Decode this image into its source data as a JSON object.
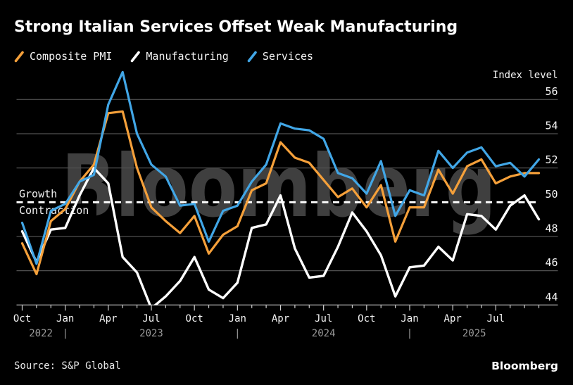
{
  "title": "Strong Italian Services Offset Weak Manufacturing",
  "source": "Source: S&P Global",
  "branding": "Bloomberg",
  "watermark": "Bloomberg",
  "threshold": {
    "value": 50,
    "above_label": "Growth",
    "below_label": "Contraction"
  },
  "colors": {
    "background": "#000000",
    "composite": "#f5a03a",
    "manufacturing": "#ffffff",
    "services": "#41a6e6",
    "gridline": "#515151",
    "axis_line": "#9e9e9e",
    "tick": "#cfcfcf",
    "watermark": "#3f3f3f",
    "axis_text": "#f5f5f5",
    "year_text": "#9a9a9a",
    "threshold_line": "#ffffff"
  },
  "chart_data": {
    "type": "line",
    "title": "Strong Italian Services Offset Weak Manufacturing",
    "y_axis_title": "Index level",
    "ylim": [
      44,
      58
    ],
    "y_ticks": [
      56,
      54,
      52,
      50,
      48,
      46,
      44
    ],
    "grid": true,
    "legend_position": "top",
    "threshold_value": 50,
    "x_tick_labels": [
      "Oct",
      "Jan",
      "Apr",
      "Jul",
      "Oct",
      "Jan",
      "Apr",
      "Jul",
      "Oct",
      "Jan",
      "Apr",
      "Jul"
    ],
    "x_year_labels": [
      "2022",
      "2023",
      "2024",
      "2025"
    ],
    "year_separator": "|",
    "x": [
      "Sep 2022",
      "Oct 2022",
      "Nov 2022",
      "Dec 2022",
      "Jan 2023",
      "Feb 2023",
      "Mar 2023",
      "Apr 2023",
      "May 2023",
      "Jun 2023",
      "Jul 2023",
      "Aug 2023",
      "Sep 2023",
      "Oct 2023",
      "Nov 2023",
      "Dec 2023",
      "Jan 2024",
      "Feb 2024",
      "Mar 2024",
      "Apr 2024",
      "May 2024",
      "Jun 2024",
      "Jul 2024",
      "Aug 2024",
      "Sep 2024",
      "Oct 2024",
      "Nov 2024",
      "Dec 2024",
      "Jan 2025",
      "Feb 2025",
      "Mar 2025",
      "Apr 2025",
      "May 2025",
      "Jun 2025",
      "Jul 2025",
      "Aug 2025",
      "Sep 2025"
    ],
    "series": [
      {
        "name": "Composite PMI",
        "color": "#f5a03a",
        "values": [
          47.6,
          45.8,
          48.9,
          49.6,
          51.2,
          52.2,
          55.2,
          55.3,
          52.0,
          49.7,
          48.9,
          48.2,
          49.2,
          47.0,
          48.1,
          48.6,
          50.7,
          51.1,
          53.5,
          52.6,
          52.3,
          51.3,
          50.3,
          50.8,
          49.7,
          51.0,
          47.7,
          49.7,
          49.7,
          51.9,
          50.5,
          52.1,
          52.5,
          51.1,
          51.5,
          51.7,
          51.7
        ]
      },
      {
        "name": "Manufacturing",
        "color": "#ffffff",
        "values": [
          48.3,
          46.5,
          48.4,
          48.5,
          50.4,
          52.0,
          51.1,
          46.8,
          45.9,
          43.8,
          44.5,
          45.4,
          46.8,
          44.9,
          44.4,
          45.3,
          48.5,
          48.7,
          50.4,
          47.3,
          45.6,
          45.7,
          47.4,
          49.4,
          48.3,
          46.9,
          44.5,
          46.2,
          46.3,
          47.4,
          46.6,
          49.3,
          49.2,
          48.4,
          49.8,
          50.4,
          49.0
        ]
      },
      {
        "name": "Services",
        "color": "#41a6e6",
        "values": [
          48.8,
          46.4,
          49.5,
          49.9,
          51.2,
          51.6,
          55.7,
          57.6,
          54.0,
          52.2,
          51.5,
          49.8,
          49.9,
          47.7,
          49.5,
          49.8,
          51.2,
          52.2,
          54.6,
          54.3,
          54.2,
          53.7,
          51.7,
          51.4,
          50.5,
          52.4,
          49.2,
          50.7,
          50.4,
          53.0,
          52.0,
          52.9,
          53.2,
          52.1,
          52.3,
          51.5,
          52.5
        ]
      }
    ]
  }
}
